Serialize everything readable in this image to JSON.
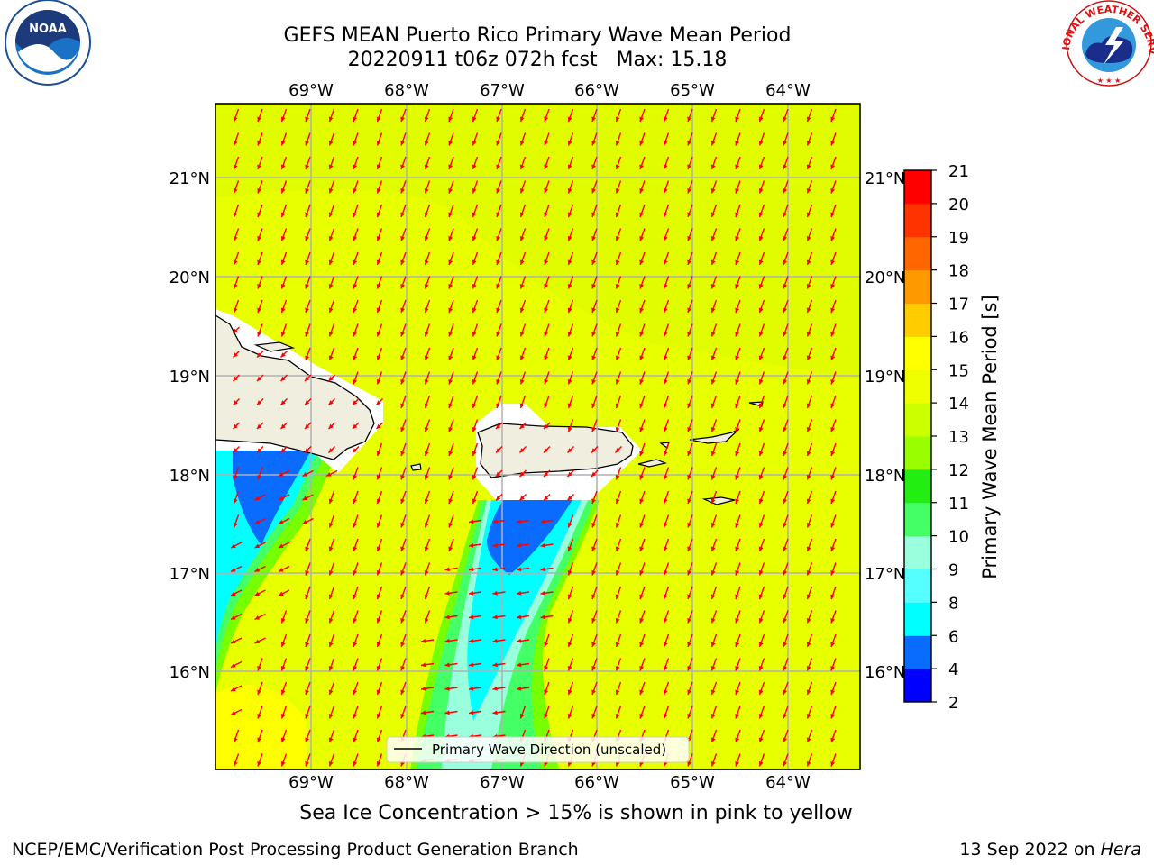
{
  "title_line1": "GEFS MEAN Puerto Rico Primary Wave Mean Period",
  "title_line2": "20220911 t06z 072h fcst   Max: 15.18",
  "footer_left": "NCEP/EMC/Verification Post Processing Product Generation Branch",
  "footer_right_prefix": "13 Sep 2022 on ",
  "footer_right_machine": "Hera",
  "caption": "Sea Ice Concentration > 15% is shown in pink to yellow",
  "legend_label": "Primary Wave Direction (unscaled)",
  "colorbar": {
    "label": "Primary Wave Mean Period [s]",
    "ticks": [
      "2",
      "4",
      "6",
      "8",
      "9",
      "10",
      "11",
      "12",
      "13",
      "14",
      "15",
      "16",
      "17",
      "18",
      "19",
      "20",
      "21"
    ],
    "colors": [
      "#0000ff",
      "#0a6cff",
      "#00ffff",
      "#55ffff",
      "#99ffdd",
      "#44ff66",
      "#22ee11",
      "#99ff00",
      "#ccff00",
      "#f0ff00",
      "#ffff00",
      "#ffcc00",
      "#ff9900",
      "#ff6600",
      "#ff3300",
      "#ff0000"
    ]
  },
  "map": {
    "lon_ticks": [
      "69°W",
      "68°W",
      "67°W",
      "66°W",
      "65°W",
      "64°W"
    ],
    "lat_ticks": [
      "21°N",
      "20°N",
      "19°N",
      "18°N",
      "17°N",
      "16°N"
    ],
    "lon_range": [
      -70.0,
      -63.25
    ],
    "lat_range": [
      15.0,
      21.75
    ],
    "background_color": "#e8ff00",
    "land_color": "#efeedf",
    "arrow_color": "#ff0000"
  },
  "logos": {
    "noaa": "NOAA",
    "nws_arc": "NATIONAL WEATHER SERVICE"
  }
}
